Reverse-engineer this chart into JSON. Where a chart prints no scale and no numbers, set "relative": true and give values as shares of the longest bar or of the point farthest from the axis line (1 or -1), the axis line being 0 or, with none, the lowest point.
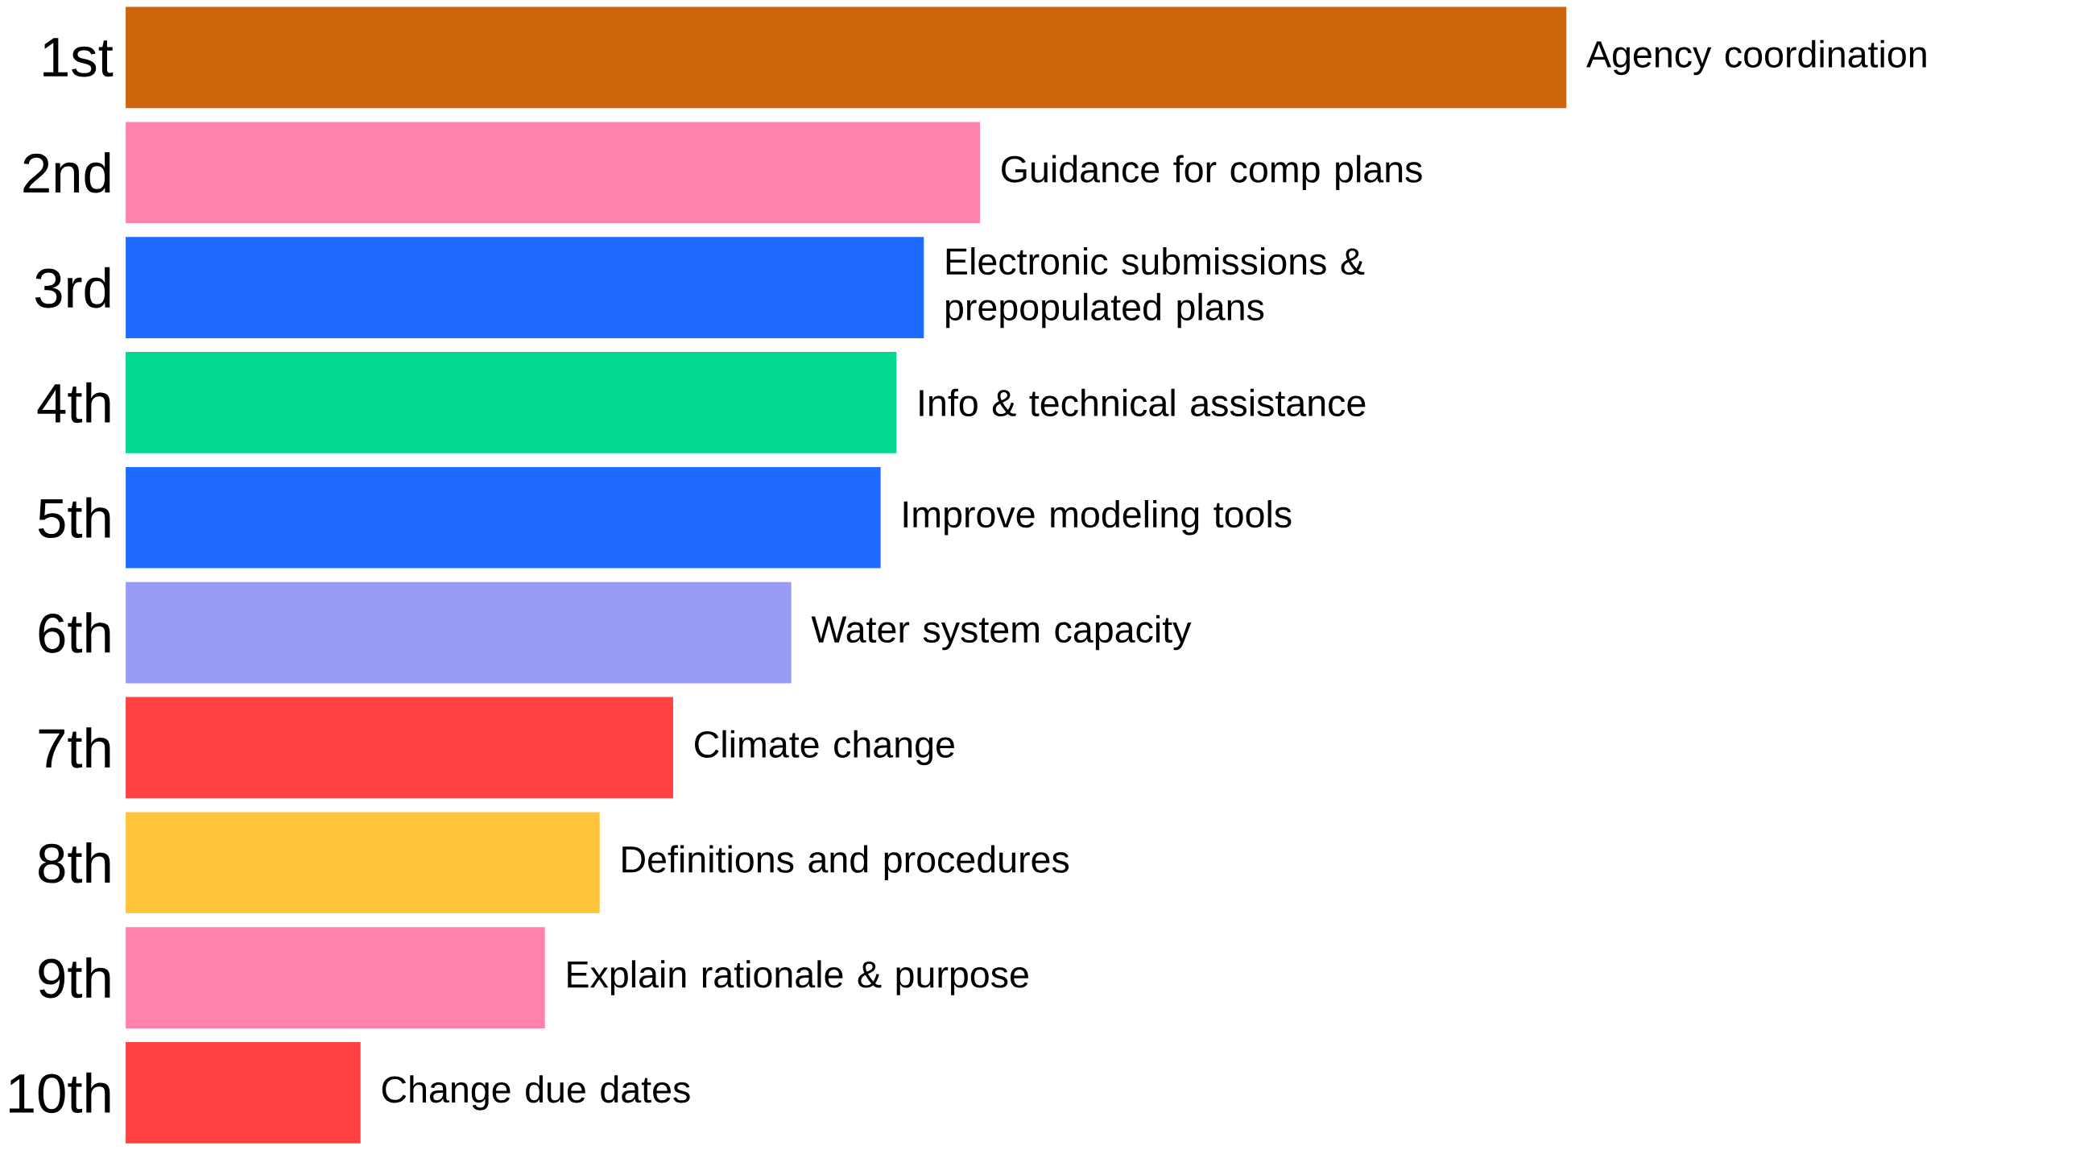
{
  "chart_data": {
    "type": "bar",
    "orientation": "horizontal",
    "relative": true,
    "categories": [
      "1st",
      "2nd",
      "3rd",
      "4th",
      "5th",
      "6th",
      "7th",
      "8th",
      "9th",
      "10th"
    ],
    "values": [
      1.0,
      0.593,
      0.554,
      0.535,
      0.524,
      0.462,
      0.38,
      0.329,
      0.291,
      0.163
    ],
    "colors": [
      "#cc650c",
      "#ff82ab",
      "#1f6bff",
      "#00d98f",
      "#1f6bff",
      "#989cf5",
      "#ff4141",
      "#ffc53a",
      "#ff82ab",
      "#ff4141"
    ],
    "annotations": [
      {
        "text": "Agency coordination",
        "x": 1.0,
        "y": "1st"
      },
      {
        "text": "Guidance for comp plans",
        "x": 0.593,
        "y": "2nd"
      },
      {
        "text": "Electronic submissions & prepopulated plans",
        "x": 0.554,
        "y": "3rd"
      },
      {
        "text": "Info & technical assistance",
        "x": 0.535,
        "y": "4th"
      },
      {
        "text": "Improve modeling tools",
        "x": 0.524,
        "y": "5th"
      },
      {
        "text": "Water system capacity",
        "x": 0.462,
        "y": "6th"
      },
      {
        "text": "Climate change",
        "x": 0.38,
        "y": "7th"
      },
      {
        "text": "Definitions and procedures",
        "x": 0.329,
        "y": "8th"
      },
      {
        "text": "Explain rationale & purpose",
        "x": 0.291,
        "y": "9th"
      },
      {
        "text": "Change due dates",
        "x": 0.163,
        "y": "10th"
      }
    ]
  }
}
